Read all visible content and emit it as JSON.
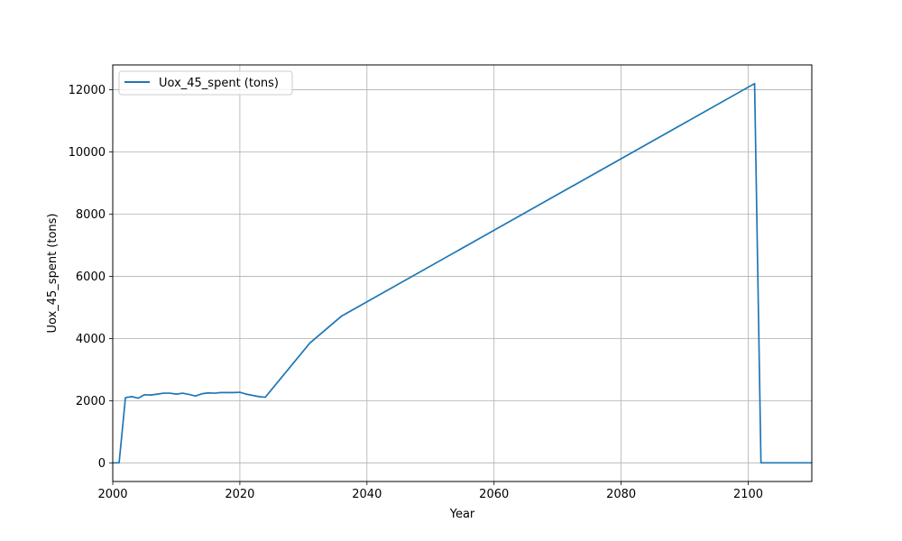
{
  "chart_data": {
    "type": "line",
    "title": "",
    "xlabel": "Year",
    "ylabel": "Uox_45_spent (tons)",
    "xlim": [
      2000,
      2110
    ],
    "ylim": [
      -600,
      12800
    ],
    "xticks": [
      2000,
      2020,
      2040,
      2060,
      2080,
      2100
    ],
    "yticks": [
      0,
      2000,
      4000,
      6000,
      8000,
      10000,
      12000
    ],
    "grid": true,
    "legend_position": "top-left",
    "series": [
      {
        "name": "Uox_45_spent (tons)",
        "color": "#1f77b4",
        "x": [
          2000,
          2001,
          2002,
          2003,
          2004,
          2005,
          2006,
          2007,
          2008,
          2009,
          2010,
          2011,
          2012,
          2013,
          2014,
          2015,
          2016,
          2017,
          2018,
          2019,
          2020,
          2021,
          2022,
          2023,
          2024,
          2031,
          2036,
          2101,
          2102,
          2110
        ],
        "y": [
          0,
          0,
          2100,
          2130,
          2080,
          2190,
          2180,
          2210,
          2240,
          2240,
          2210,
          2240,
          2200,
          2150,
          2220,
          2250,
          2240,
          2260,
          2260,
          2260,
          2270,
          2210,
          2170,
          2130,
          2110,
          3850,
          4720,
          12200,
          0,
          0
        ]
      }
    ]
  }
}
